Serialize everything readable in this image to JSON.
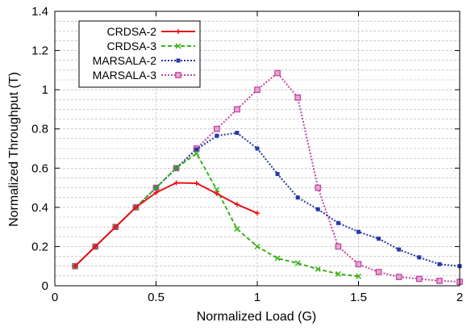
{
  "chart_data": {
    "type": "line",
    "title": "",
    "xlabel": "Normalized Load (G)",
    "ylabel": "Normalized Throughput (T)",
    "xlim": [
      0,
      2
    ],
    "ylim": [
      0,
      1.4
    ],
    "xticks": [
      0,
      0.5,
      1,
      1.5,
      2
    ],
    "xtick_labels": [
      "0",
      "0.5",
      "1",
      "1.5",
      "2"
    ],
    "yticks": [
      0,
      0.2,
      0.4,
      0.6,
      0.8,
      1,
      1.2,
      1.4
    ],
    "ytick_labels": [
      "0",
      "0.2",
      "0.4",
      "0.6",
      "0.8",
      "1",
      "1.2",
      "1.4"
    ],
    "grid": true,
    "legend_position": "top-left",
    "series": [
      {
        "name": "CRDSA-2",
        "color": "#e8141b",
        "line": "solid",
        "marker": "plus",
        "x": [
          0.1,
          0.2,
          0.3,
          0.4,
          0.5,
          0.6,
          0.7,
          0.8,
          0.9,
          1.0
        ],
        "y": [
          0.1,
          0.2,
          0.3,
          0.4,
          0.475,
          0.525,
          0.523,
          0.47,
          0.415,
          0.37
        ]
      },
      {
        "name": "CRDSA-3",
        "color": "#3bb21b",
        "line": "dashed",
        "marker": "x",
        "x": [
          0.1,
          0.2,
          0.3,
          0.4,
          0.5,
          0.6,
          0.7,
          0.8,
          0.9,
          1.0,
          1.1,
          1.2,
          1.3,
          1.4,
          1.5
        ],
        "y": [
          0.1,
          0.2,
          0.3,
          0.4,
          0.5,
          0.6,
          0.675,
          0.49,
          0.29,
          0.2,
          0.14,
          0.115,
          0.085,
          0.06,
          0.048
        ]
      },
      {
        "name": "MARSALA-2",
        "color": "#2638a4",
        "line": "dotted",
        "marker": "square",
        "x": [
          0.1,
          0.2,
          0.3,
          0.4,
          0.5,
          0.6,
          0.7,
          0.8,
          0.9,
          1.0,
          1.1,
          1.2,
          1.3,
          1.4,
          1.5,
          1.6,
          1.7,
          1.8,
          1.9,
          2.0
        ],
        "y": [
          0.1,
          0.2,
          0.3,
          0.4,
          0.5,
          0.6,
          0.695,
          0.765,
          0.78,
          0.7,
          0.57,
          0.45,
          0.39,
          0.32,
          0.275,
          0.24,
          0.185,
          0.145,
          0.11,
          0.1
        ]
      },
      {
        "name": "MARSALA-3",
        "color": "#c2479f",
        "line": "dotted",
        "marker": "square-open",
        "x": [
          0.1,
          0.2,
          0.3,
          0.4,
          0.5,
          0.6,
          0.7,
          0.8,
          0.9,
          1.0,
          1.1,
          1.2,
          1.3,
          1.4,
          1.5,
          1.6,
          1.7,
          1.8,
          1.9,
          2.0
        ],
        "y": [
          0.1,
          0.2,
          0.3,
          0.4,
          0.5,
          0.6,
          0.7,
          0.8,
          0.9,
          1.0,
          1.085,
          0.96,
          0.5,
          0.2,
          0.11,
          0.07,
          0.045,
          0.035,
          0.025,
          0.02
        ]
      }
    ]
  }
}
